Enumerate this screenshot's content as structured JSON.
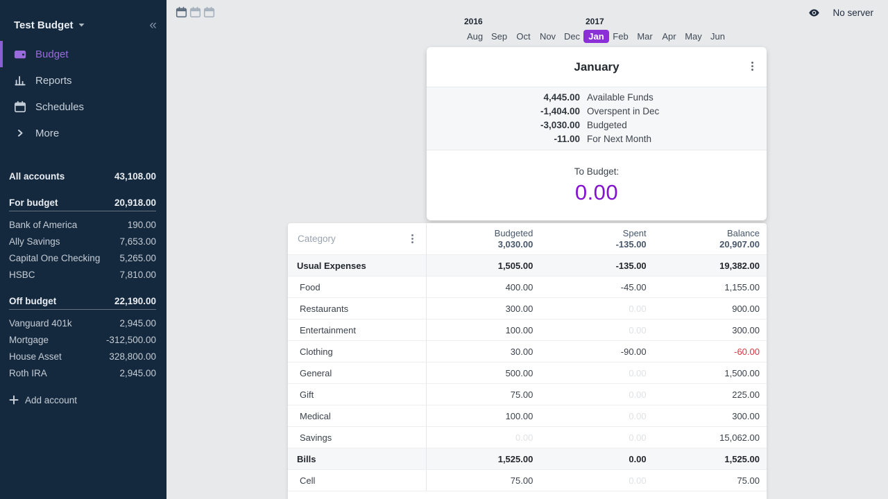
{
  "colors": {
    "sidebar_bg": "#15293E",
    "accent_purple": "#8B2FD6",
    "to_budget_purple": "#8312D1",
    "sidebar_active_purple": "#9A6BDC",
    "negative_red": "#D6363E",
    "faded_zero": "#DFE2E5"
  },
  "sidebar": {
    "title": "Test Budget",
    "nav": [
      {
        "label": "Budget",
        "icon": "wallet-icon",
        "active": true
      },
      {
        "label": "Reports",
        "icon": "bar-chart-icon",
        "active": false
      },
      {
        "label": "Schedules",
        "icon": "calendar-icon",
        "active": false
      },
      {
        "label": "More",
        "icon": "chevron-right-icon",
        "active": false
      }
    ],
    "accounts": {
      "all_label": "All accounts",
      "all_value": "43,108.00",
      "for_budget_label": "For budget",
      "for_budget_value": "20,918.00",
      "on_budget": [
        {
          "name": "Bank of America",
          "value": "190.00"
        },
        {
          "name": "Ally Savings",
          "value": "7,653.00"
        },
        {
          "name": "Capital One Checking",
          "value": "5,265.00"
        },
        {
          "name": "HSBC",
          "value": "7,810.00"
        }
      ],
      "off_budget_label": "Off budget",
      "off_budget_value": "22,190.00",
      "off_budget": [
        {
          "name": "Vanguard 401k",
          "value": "2,945.00"
        },
        {
          "name": "Mortgage",
          "value": "-312,500.00"
        },
        {
          "name": "House Asset",
          "value": "328,800.00"
        },
        {
          "name": "Roth IRA",
          "value": "2,945.00"
        }
      ],
      "add_account_label": "Add account"
    }
  },
  "topbar": {
    "no_server_label": "No server"
  },
  "month_nav": {
    "years": [
      {
        "label": "2016",
        "month_index": 0
      },
      {
        "label": "2017",
        "month_index": 5
      }
    ],
    "months": [
      "Aug",
      "Sep",
      "Oct",
      "Nov",
      "Dec",
      "Jan",
      "Feb",
      "Mar",
      "Apr",
      "May",
      "Jun"
    ],
    "selected_month": "Jan"
  },
  "month_card": {
    "title": "January",
    "summary": [
      {
        "value": "4,445.00",
        "label": "Available Funds"
      },
      {
        "value": "-1,404.00",
        "label": "Overspent in Dec"
      },
      {
        "value": "-3,030.00",
        "label": "Budgeted"
      },
      {
        "value": "-11.00",
        "label": "For Next Month"
      }
    ],
    "to_budget_label": "To Budget:",
    "to_budget_value": "0.00"
  },
  "budget_table": {
    "category_header": "Category",
    "columns": [
      {
        "label": "Budgeted",
        "total": "3,030.00"
      },
      {
        "label": "Spent",
        "total": "-135.00"
      },
      {
        "label": "Balance",
        "total": "20,907.00"
      }
    ],
    "groups": [
      {
        "name": "Usual Expenses",
        "budgeted": "1,505.00",
        "spent": "-135.00",
        "balance": "19,382.00",
        "rows": [
          {
            "name": "Food",
            "budgeted": "400.00",
            "spent": "-45.00",
            "balance": "1,155.00"
          },
          {
            "name": "Restaurants",
            "budgeted": "300.00",
            "spent": "0.00",
            "balance": "900.00"
          },
          {
            "name": "Entertainment",
            "budgeted": "100.00",
            "spent": "0.00",
            "balance": "300.00"
          },
          {
            "name": "Clothing",
            "budgeted": "30.00",
            "spent": "-90.00",
            "balance": "-60.00"
          },
          {
            "name": "General",
            "budgeted": "500.00",
            "spent": "0.00",
            "balance": "1,500.00"
          },
          {
            "name": "Gift",
            "budgeted": "75.00",
            "spent": "0.00",
            "balance": "225.00"
          },
          {
            "name": "Medical",
            "budgeted": "100.00",
            "spent": "0.00",
            "balance": "300.00"
          },
          {
            "name": "Savings",
            "budgeted": "0.00",
            "spent": "0.00",
            "balance": "15,062.00"
          }
        ]
      },
      {
        "name": "Bills",
        "budgeted": "1,525.00",
        "spent": "0.00",
        "balance": "1,525.00",
        "rows": [
          {
            "name": "Cell",
            "budgeted": "75.00",
            "spent": "0.00",
            "balance": "75.00"
          }
        ]
      }
    ]
  }
}
